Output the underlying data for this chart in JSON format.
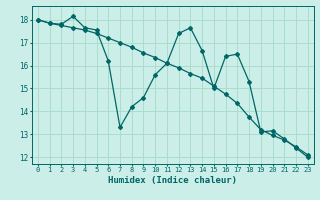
{
  "xlabel": "Humidex (Indice chaleur)",
  "background_color": "#cceee8",
  "grid_color": "#aaddcc",
  "line_color": "#006666",
  "xlim": [
    -0.5,
    23.5
  ],
  "ylim": [
    11.7,
    18.6
  ],
  "yticks": [
    12,
    13,
    14,
    15,
    16,
    17,
    18
  ],
  "xticks": [
    0,
    1,
    2,
    3,
    4,
    5,
    6,
    7,
    8,
    9,
    10,
    11,
    12,
    13,
    14,
    15,
    16,
    17,
    18,
    19,
    20,
    21,
    22,
    23
  ],
  "line1_x": [
    0,
    1,
    2,
    3,
    4,
    5,
    6,
    7,
    8,
    9,
    10,
    11,
    12,
    13,
    14,
    15,
    16,
    17,
    18,
    19,
    20,
    21,
    22,
    23
  ],
  "line1_y": [
    18.0,
    17.85,
    17.8,
    18.15,
    17.65,
    17.55,
    16.2,
    13.3,
    14.2,
    14.6,
    15.6,
    16.1,
    17.4,
    17.65,
    16.65,
    15.0,
    16.4,
    16.5,
    15.3,
    13.1,
    13.15,
    12.8,
    12.4,
    12.0
  ],
  "line2_x": [
    0,
    1,
    2,
    3,
    4,
    5,
    6,
    7,
    8,
    9,
    10,
    11,
    12,
    13,
    14,
    15,
    16,
    17,
    18,
    19,
    20,
    21,
    22,
    23
  ],
  "line2_y": [
    18.0,
    17.85,
    17.75,
    17.65,
    17.55,
    17.4,
    17.2,
    17.0,
    16.8,
    16.55,
    16.35,
    16.1,
    15.9,
    15.65,
    15.45,
    15.1,
    14.75,
    14.35,
    13.75,
    13.2,
    12.95,
    12.75,
    12.45,
    12.1
  ]
}
